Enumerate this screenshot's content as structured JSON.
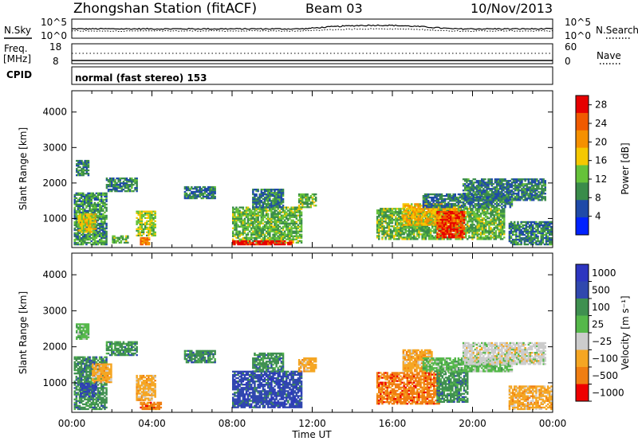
{
  "header": {
    "station": "Zhongshan Station (fitACF)",
    "beam": "Beam 03",
    "date": "10/Nov/2013"
  },
  "strip_top": {
    "left_label": "N.Sky",
    "right_label": "N.Search",
    "y_ticks_left": [
      "10^5",
      "10^0"
    ],
    "y_ticks_right": [
      "10^5",
      "10^0"
    ]
  },
  "strip_freq": {
    "left_label_1": "Freq.",
    "left_label_2": "[MHz]",
    "right_label": "Nave",
    "y_ticks_left": [
      "18",
      "8"
    ],
    "y_ticks_right": [
      "60",
      "0"
    ]
  },
  "cpid": {
    "label": "CPID",
    "mode_text": "normal (fast stereo) 153"
  },
  "colors": {
    "power": [
      "#0022ff",
      "#1f4aa8",
      "#3a8c4a",
      "#66c23a",
      "#f5c800",
      "#f59000",
      "#f05a00",
      "#e60000"
    ],
    "velocity": [
      "#2d35c0",
      "#3048ae",
      "#3f9050",
      "#55b84a",
      "#cccccc",
      "#f5a623",
      "#f07e12",
      "#e84a00",
      "#ee0000"
    ]
  },
  "chart_data": [
    {
      "type": "heatmap",
      "title": "Power",
      "ylabel": "Slant Range [km]",
      "ylim": [
        180,
        4600
      ],
      "y_ticks": [
        1000,
        2000,
        3000,
        4000
      ],
      "colorbar_label": "Power [dB]",
      "colorbar_ticks": [
        4,
        8,
        12,
        16,
        20,
        24,
        28
      ],
      "clim": [
        0,
        30
      ],
      "patches": [
        {
          "t0": 0.2,
          "t1": 0.9,
          "r0": 2200,
          "r1": 2650,
          "v": 8
        },
        {
          "t0": 0.1,
          "t1": 1.8,
          "r0": 250,
          "r1": 1700,
          "v": 10
        },
        {
          "t0": 0.3,
          "t1": 1.2,
          "r0": 600,
          "r1": 1100,
          "v": 16
        },
        {
          "t0": 1.7,
          "t1": 3.3,
          "r0": 1750,
          "r1": 2150,
          "v": 8
        },
        {
          "t0": 2.0,
          "t1": 2.8,
          "r0": 300,
          "r1": 500,
          "v": 12
        },
        {
          "t0": 3.2,
          "t1": 4.2,
          "r0": 500,
          "r1": 1200,
          "v": 14
        },
        {
          "t0": 3.4,
          "t1": 3.9,
          "r0": 250,
          "r1": 450,
          "v": 22
        },
        {
          "t0": 5.6,
          "t1": 7.2,
          "r0": 1550,
          "r1": 1900,
          "v": 8
        },
        {
          "t0": 8.0,
          "t1": 11.5,
          "r0": 300,
          "r1": 1300,
          "v": 12
        },
        {
          "t0": 8.0,
          "t1": 11.0,
          "r0": 250,
          "r1": 350,
          "v": 28
        },
        {
          "t0": 9.0,
          "t1": 10.6,
          "r0": 1300,
          "r1": 1800,
          "v": 8
        },
        {
          "t0": 11.3,
          "t1": 12.2,
          "r0": 1300,
          "r1": 1700,
          "v": 12
        },
        {
          "t0": 15.2,
          "t1": 21.6,
          "r0": 400,
          "r1": 1300,
          "v": 12
        },
        {
          "t0": 16.5,
          "t1": 19.4,
          "r0": 800,
          "r1": 1400,
          "v": 18
        },
        {
          "t0": 18.2,
          "t1": 19.6,
          "r0": 450,
          "r1": 1200,
          "v": 26
        },
        {
          "t0": 17.5,
          "t1": 22.0,
          "r0": 1300,
          "r1": 1700,
          "v": 8
        },
        {
          "t0": 19.5,
          "t1": 23.7,
          "r0": 1500,
          "r1": 2100,
          "v": 8
        },
        {
          "t0": 21.8,
          "t1": 24.0,
          "r0": 250,
          "r1": 900,
          "v": 8
        }
      ]
    },
    {
      "type": "heatmap",
      "title": "Velocity",
      "ylabel": "Slant Range [km]",
      "xlabel": "Time UT",
      "ylim": [
        180,
        4600
      ],
      "y_ticks": [
        1000,
        2000,
        3000,
        4000
      ],
      "x_ticks": [
        "00:00",
        "04:00",
        "08:00",
        "12:00",
        "16:00",
        "20:00",
        "00:00"
      ],
      "xlim": [
        0,
        24
      ],
      "colorbar_label": "Velocity [m s⁻¹]",
      "colorbar_ticks": [
        "1000",
        "500",
        "100",
        "25",
        "−25",
        "−100",
        "−500",
        "−1000"
      ],
      "patches": [
        {
          "t0": 0.2,
          "t1": 0.9,
          "r0": 2200,
          "r1": 2650,
          "v": 25
        },
        {
          "t0": 0.1,
          "t1": 1.8,
          "r0": 250,
          "r1": 1700,
          "v": 100
        },
        {
          "t0": 0.4,
          "t1": 1.2,
          "r0": 600,
          "r1": 1000,
          "v": 500
        },
        {
          "t0": 1.0,
          "t1": 2.0,
          "r0": 1000,
          "r1": 1500,
          "v": -100
        },
        {
          "t0": 1.7,
          "t1": 3.3,
          "r0": 1750,
          "r1": 2150,
          "v": 100
        },
        {
          "t0": 3.2,
          "t1": 4.2,
          "r0": 500,
          "r1": 1200,
          "v": -100
        },
        {
          "t0": 3.4,
          "t1": 4.5,
          "r0": 250,
          "r1": 450,
          "v": -500
        },
        {
          "t0": 5.6,
          "t1": 7.2,
          "r0": 1550,
          "r1": 1900,
          "v": 100
        },
        {
          "t0": 8.0,
          "t1": 11.5,
          "r0": 300,
          "r1": 1300,
          "v": 500
        },
        {
          "t0": 9.0,
          "t1": 10.6,
          "r0": 1300,
          "r1": 1800,
          "v": 100
        },
        {
          "t0": 11.3,
          "t1": 12.2,
          "r0": 1300,
          "r1": 1700,
          "v": -100
        },
        {
          "t0": 15.2,
          "t1": 18.4,
          "r0": 400,
          "r1": 1300,
          "v": -500
        },
        {
          "t0": 16.5,
          "t1": 18.0,
          "r0": 1300,
          "r1": 1900,
          "v": -100
        },
        {
          "t0": 18.2,
          "t1": 19.8,
          "r0": 450,
          "r1": 1400,
          "v": 100
        },
        {
          "t0": 17.5,
          "t1": 22.0,
          "r0": 1300,
          "r1": 1700,
          "v": 25
        },
        {
          "t0": 19.5,
          "t1": 23.7,
          "r0": 1500,
          "r1": 2100,
          "v": -25
        },
        {
          "t0": 21.8,
          "t1": 24.0,
          "r0": 250,
          "r1": 900,
          "v": -100
        }
      ]
    }
  ]
}
